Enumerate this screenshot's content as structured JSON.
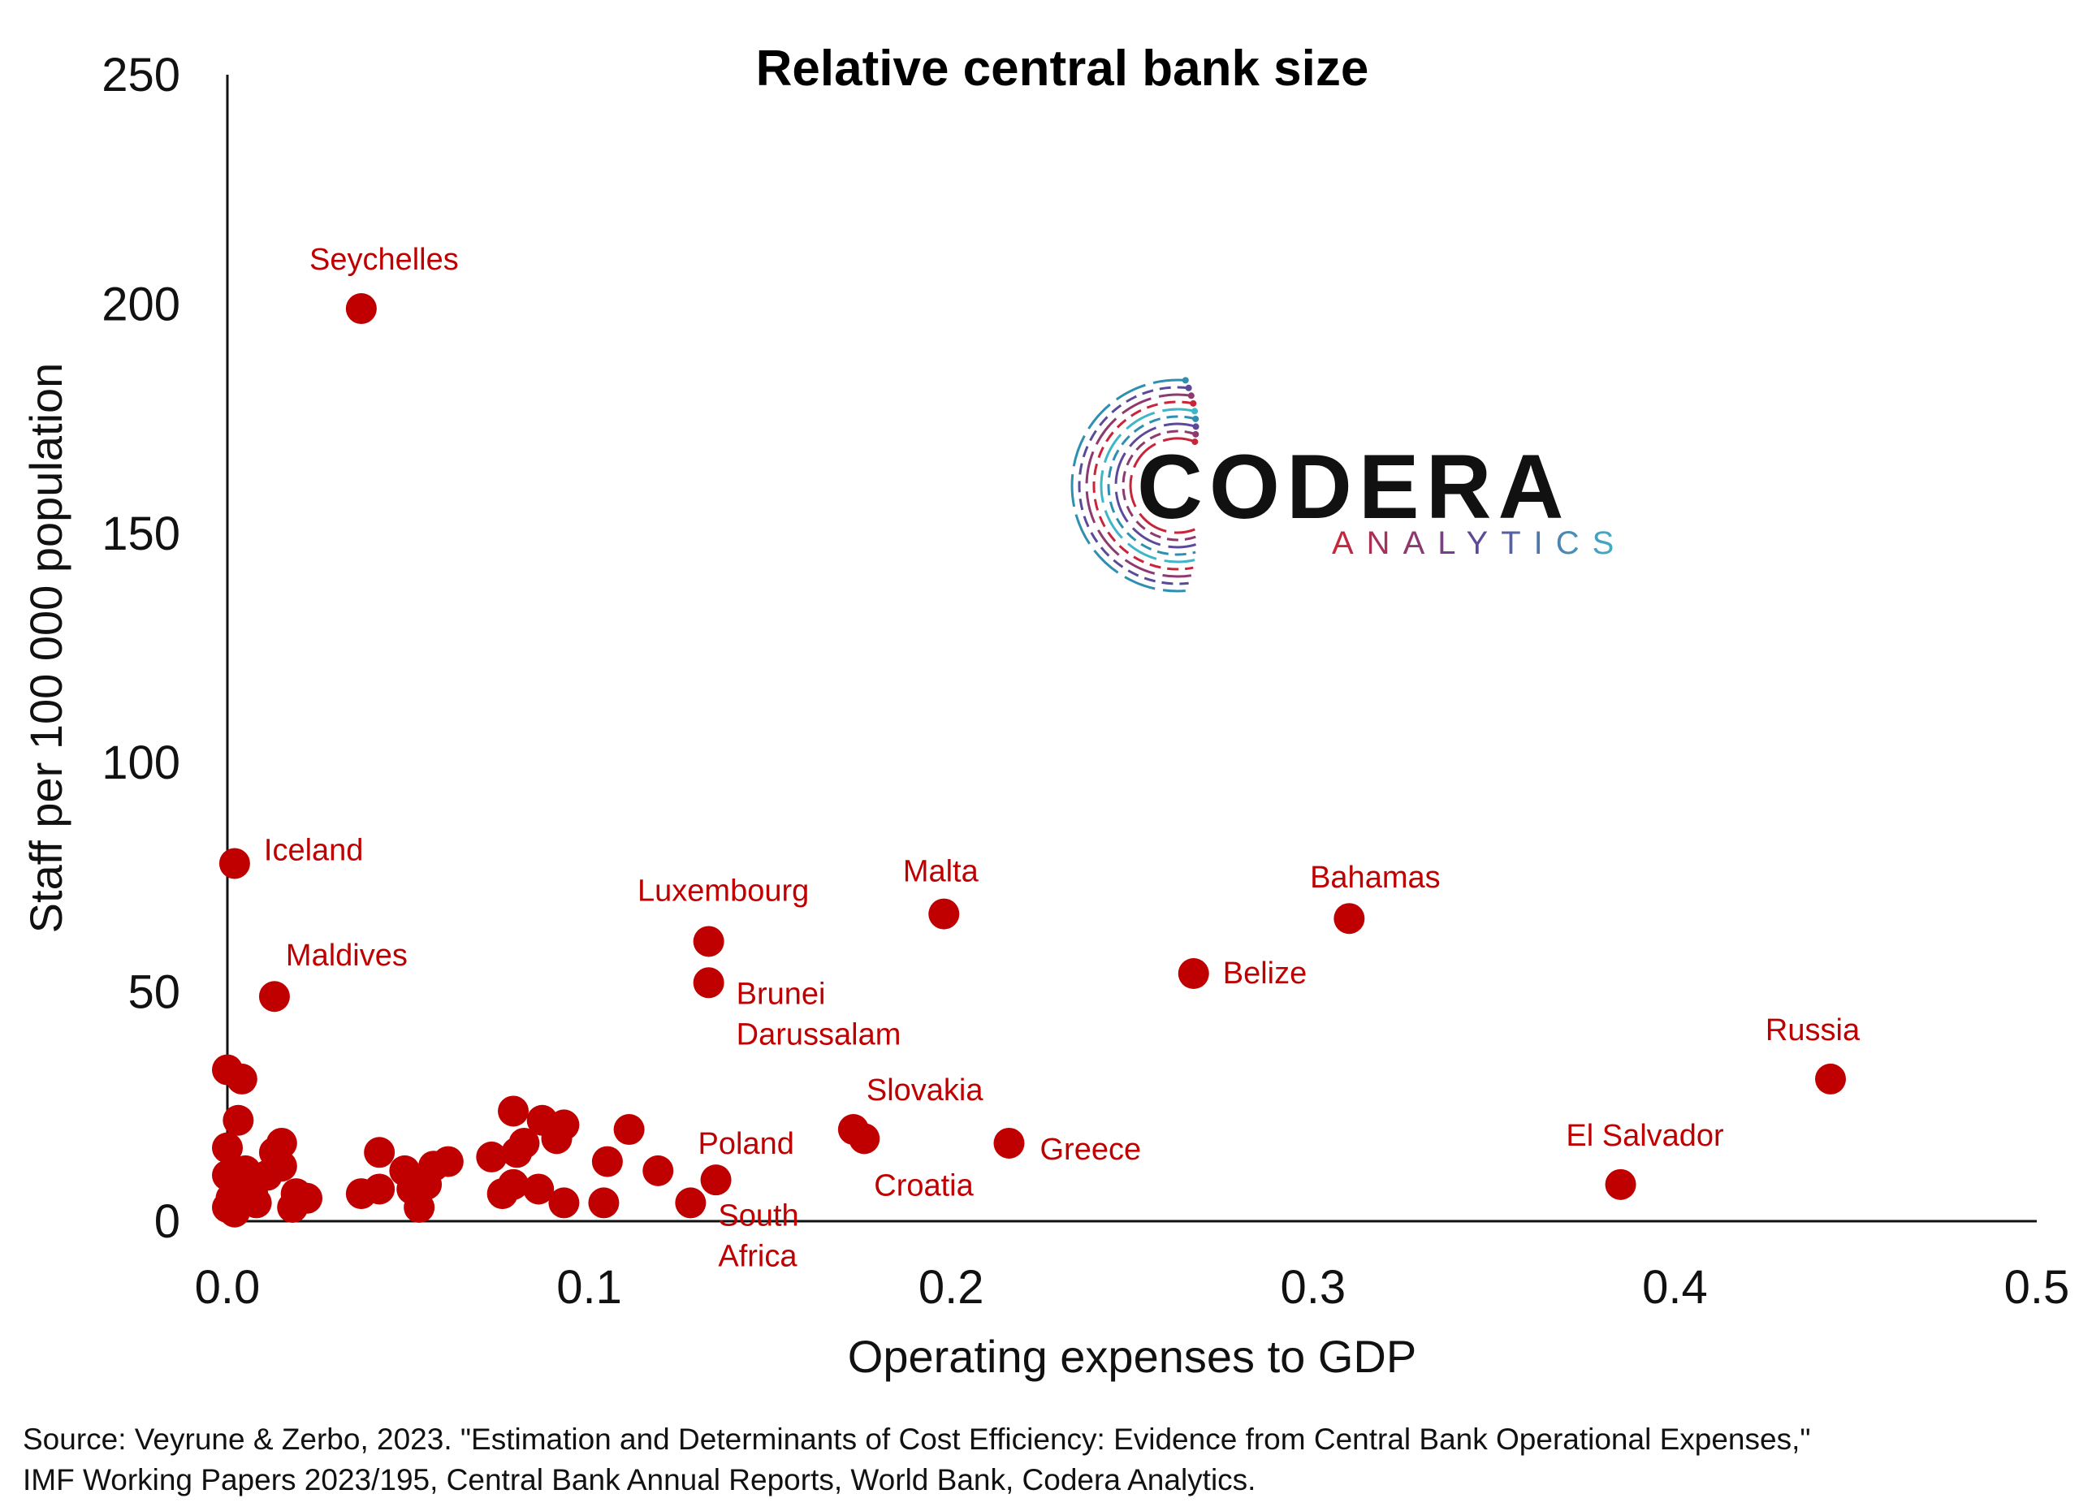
{
  "chart_data": {
    "type": "scatter",
    "title": "Relative central bank size",
    "xlabel": "Operating expenses to GDP",
    "ylabel": "Staff per 100 000 population",
    "xlim": [
      0,
      0.5
    ],
    "ylim": [
      0,
      250
    ],
    "xticks": [
      "0.0",
      "0.1",
      "0.2",
      "0.3",
      "0.4",
      "0.5"
    ],
    "yticks": [
      "0",
      "50",
      "100",
      "150",
      "200",
      "250"
    ],
    "grid": false,
    "marker_color": "#C00000",
    "label_color": "#C00000",
    "labeled_points": [
      {
        "label": "Seychelles",
        "x": 0.037,
        "y": 199
      },
      {
        "label": "Iceland",
        "x": 0.002,
        "y": 78
      },
      {
        "label": "Maldives",
        "x": 0.013,
        "y": 49
      },
      {
        "label": "Luxembourg",
        "x": 0.133,
        "y": 61
      },
      {
        "label": "Brunei Darussalam",
        "x": 0.133,
        "y": 52
      },
      {
        "label": "Malta",
        "x": 0.198,
        "y": 67
      },
      {
        "label": "Bahamas",
        "x": 0.31,
        "y": 66
      },
      {
        "label": "Belize",
        "x": 0.267,
        "y": 54
      },
      {
        "label": "Russia",
        "x": 0.443,
        "y": 31
      },
      {
        "label": "El Salvador",
        "x": 0.385,
        "y": 8
      },
      {
        "label": "Slovakia",
        "x": 0.173,
        "y": 20
      },
      {
        "label": "Croatia",
        "x": 0.176,
        "y": 18
      },
      {
        "label": "Greece",
        "x": 0.216,
        "y": 17
      },
      {
        "label": "Poland",
        "x": 0.135,
        "y": 9
      },
      {
        "label": "South Africa",
        "x": 0.128,
        "y": 4
      }
    ],
    "unlabeled_points": [
      {
        "x": 0.0,
        "y": 33
      },
      {
        "x": 0.004,
        "y": 31
      },
      {
        "x": 0.003,
        "y": 22
      },
      {
        "x": 0.0,
        "y": 16
      },
      {
        "x": 0.0,
        "y": 10
      },
      {
        "x": 0.002,
        "y": 8
      },
      {
        "x": 0.001,
        "y": 5
      },
      {
        "x": 0.0,
        "y": 3
      },
      {
        "x": 0.002,
        "y": 2
      },
      {
        "x": 0.005,
        "y": 11
      },
      {
        "x": 0.007,
        "y": 6
      },
      {
        "x": 0.008,
        "y": 4
      },
      {
        "x": 0.011,
        "y": 10
      },
      {
        "x": 0.013,
        "y": 15
      },
      {
        "x": 0.015,
        "y": 17
      },
      {
        "x": 0.015,
        "y": 12
      },
      {
        "x": 0.019,
        "y": 6
      },
      {
        "x": 0.018,
        "y": 3
      },
      {
        "x": 0.022,
        "y": 5
      },
      {
        "x": 0.037,
        "y": 6
      },
      {
        "x": 0.042,
        "y": 7
      },
      {
        "x": 0.042,
        "y": 15
      },
      {
        "x": 0.049,
        "y": 11
      },
      {
        "x": 0.051,
        "y": 7
      },
      {
        "x": 0.053,
        "y": 3
      },
      {
        "x": 0.055,
        "y": 8
      },
      {
        "x": 0.057,
        "y": 12
      },
      {
        "x": 0.061,
        "y": 13
      },
      {
        "x": 0.073,
        "y": 14
      },
      {
        "x": 0.076,
        "y": 6
      },
      {
        "x": 0.079,
        "y": 24
      },
      {
        "x": 0.079,
        "y": 8
      },
      {
        "x": 0.08,
        "y": 15
      },
      {
        "x": 0.082,
        "y": 17
      },
      {
        "x": 0.086,
        "y": 7
      },
      {
        "x": 0.087,
        "y": 22
      },
      {
        "x": 0.091,
        "y": 18
      },
      {
        "x": 0.093,
        "y": 4
      },
      {
        "x": 0.093,
        "y": 21
      },
      {
        "x": 0.104,
        "y": 4
      },
      {
        "x": 0.105,
        "y": 13
      },
      {
        "x": 0.111,
        "y": 20
      },
      {
        "x": 0.119,
        "y": 11
      }
    ],
    "annotations": [
      "CODERA",
      "ANALYTICS"
    ]
  },
  "logo": {
    "word": "CODERA",
    "sub": "ANALYTICS",
    "colors": [
      "#c9253a",
      "#8e3a6e",
      "#5b4a9a",
      "#2f8fb0",
      "#3fb6c7"
    ]
  },
  "source": {
    "line1": "Source: Veyrune & Zerbo, 2023. \"Estimation and Determinants of Cost Efficiency: Evidence from Central Bank Operational Expenses,\"",
    "line2": "IMF Working Papers 2023/195, Central Bank Annual Reports, World Bank, Codera Analytics."
  }
}
